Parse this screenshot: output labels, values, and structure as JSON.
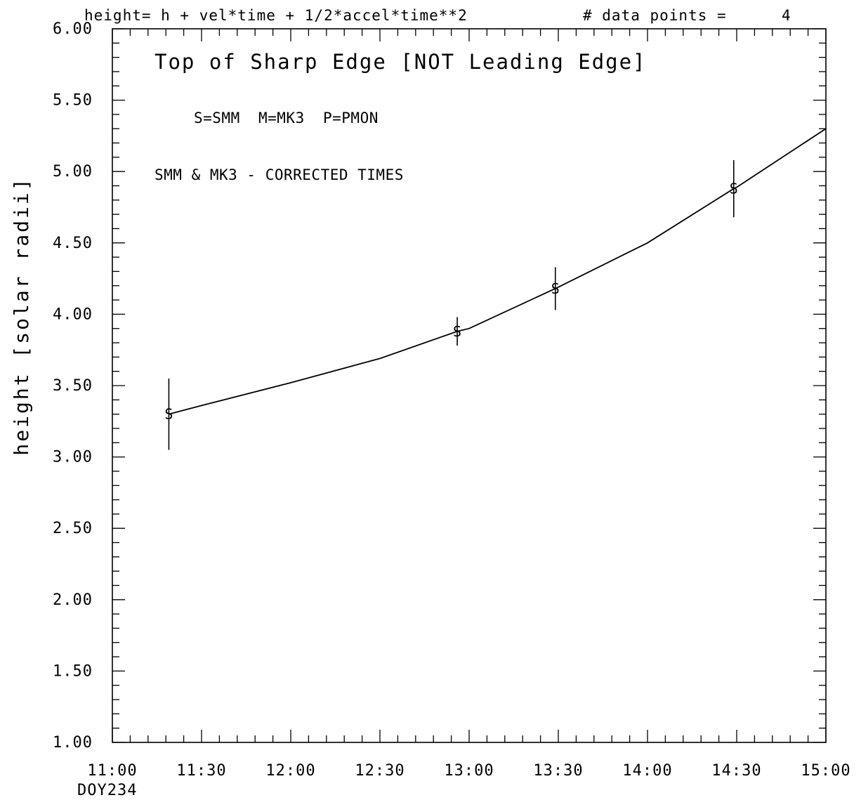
{
  "chart_data": {
    "type": "line",
    "header": {
      "formula": "height= h + vel*time + 1/2*accel*time**2",
      "points_label": "# data points =",
      "points_value": "4"
    },
    "title": "Top of Sharp Edge [NOT Leading Edge]",
    "legend": "S=SMM  M=MK3  P=PMON",
    "note": "SMM & MK3 - CORRECTED TIMES",
    "ylabel": "height [solar radii]",
    "xlabel_sub": "DOY234",
    "x_ticks": [
      "11:00",
      "11:30",
      "12:00",
      "12:30",
      "13:00",
      "13:30",
      "14:00",
      "14:30",
      "15:00"
    ],
    "y_ticks": [
      "1.00",
      "1.50",
      "2.00",
      "2.50",
      "3.00",
      "3.50",
      "4.00",
      "4.50",
      "5.00",
      "5.50",
      "6.00"
    ],
    "xlim": [
      "11:00",
      "15:00"
    ],
    "ylim": [
      1.0,
      6.0
    ],
    "series": [
      {
        "name": "SMM",
        "marker": "S",
        "x": [
          "11:19",
          "12:56",
          "13:29",
          "14:29"
        ],
        "y": [
          3.3,
          3.88,
          4.18,
          4.88
        ],
        "yerr": [
          0.25,
          0.1,
          0.15,
          0.2
        ]
      }
    ],
    "fit": {
      "x": [
        "11:19",
        "11:30",
        "12:00",
        "12:30",
        "12:56",
        "13:00",
        "13:29",
        "13:30",
        "14:00",
        "14:29",
        "14:30",
        "15:00"
      ],
      "y": [
        3.3,
        3.36,
        3.52,
        3.69,
        3.88,
        3.9,
        4.18,
        4.19,
        4.5,
        4.88,
        4.89,
        5.3
      ]
    },
    "minor_ticks_per_major_x": 5,
    "minor_ticks_per_major_y": 5,
    "grid": false,
    "colors": {
      "line": "#000000",
      "background": "#ffffff"
    }
  }
}
